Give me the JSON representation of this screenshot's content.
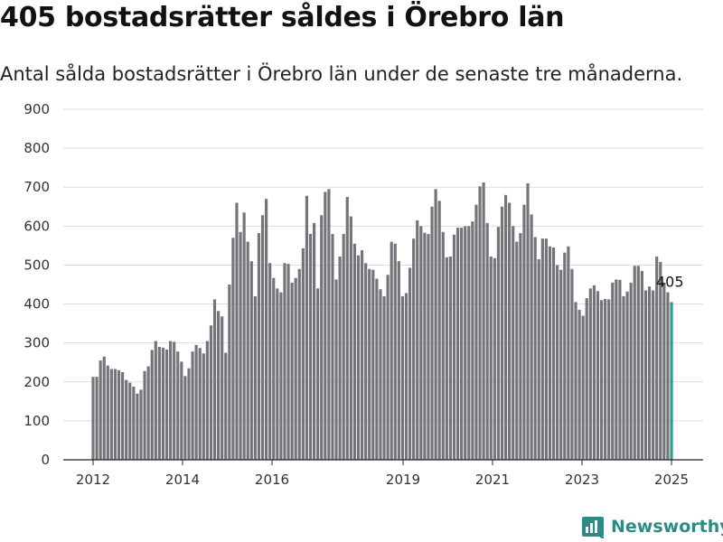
{
  "title": "405 bostadsrätter såldes i Örebro län",
  "subtitle": "Antal sålda bostadsrätter i Örebro län under de senaste tre månaderna.",
  "brand": {
    "name": "Newsworthy",
    "icon": "newsworthy-logo-icon",
    "color": "#2a8c84"
  },
  "colors": {
    "bar": "#75747a",
    "highlight": "#2a9d8f",
    "grid": "#dddddd"
  },
  "chart_data": {
    "type": "bar",
    "title": "405 bostadsrätter såldes i Örebro län",
    "subtitle": "Antal sålda bostadsrätter i Örebro län under de senaste tre månaderna.",
    "xlabel": "",
    "ylabel": "",
    "ylim": [
      0,
      900
    ],
    "yticks": [
      0,
      100,
      200,
      300,
      400,
      500,
      600,
      700,
      800,
      900
    ],
    "xticks": [
      "2012",
      "2014",
      "2016",
      "2019",
      "2021",
      "2023",
      "2025"
    ],
    "grid": true,
    "period_start": "2012-03",
    "period_end": "2025-01",
    "values": [
      213,
      213,
      255,
      265,
      242,
      233,
      233,
      230,
      225,
      205,
      198,
      188,
      170,
      180,
      228,
      240,
      282,
      305,
      290,
      288,
      283,
      305,
      303,
      278,
      252,
      215,
      235,
      278,
      295,
      287,
      273,
      305,
      345,
      412,
      382,
      368,
      275,
      450,
      570,
      660,
      585,
      635,
      560,
      510,
      420,
      582,
      628,
      670,
      505,
      467,
      440,
      430,
      505,
      503,
      455,
      467,
      490,
      543,
      678,
      580,
      608,
      440,
      628,
      688,
      695,
      580,
      463,
      522,
      580,
      675,
      625,
      555,
      525,
      538,
      505,
      490,
      488,
      465,
      438,
      420,
      475,
      560,
      555,
      510,
      420,
      428,
      493,
      568,
      615,
      600,
      583,
      580,
      650,
      695,
      665,
      585,
      520,
      522,
      578,
      596,
      596,
      600,
      600,
      612,
      655,
      702,
      712,
      608,
      522,
      518,
      598,
      650,
      680,
      660,
      600,
      560,
      582,
      655,
      710,
      630,
      572,
      515,
      568,
      568,
      548,
      545,
      500,
      488,
      532,
      548,
      490,
      405,
      385,
      370,
      415,
      440,
      448,
      433,
      410,
      413,
      412,
      455,
      463,
      462,
      420,
      432,
      455,
      498,
      498,
      485,
      435,
      445,
      435,
      522,
      508,
      455,
      430,
      405
    ],
    "highlight_label": "405"
  }
}
